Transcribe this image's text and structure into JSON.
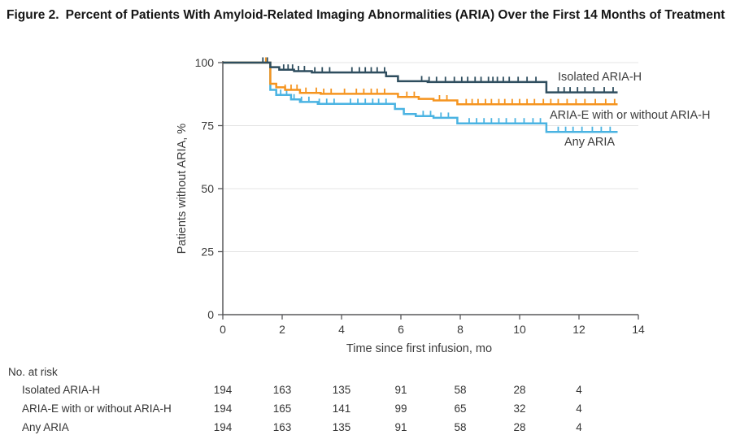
{
  "figure": {
    "label": "Figure 2.",
    "title": "Percent of Patients With Amyloid-Related Imaging Abnormalities (ARIA) Over the First 14 Months of Treatment"
  },
  "chart_data": {
    "type": "line",
    "subtype": "kaplan-meier-step",
    "title": "",
    "xlabel": "Time since first infusion, mo",
    "ylabel": "Patients without ARIA, %",
    "xlim": [
      0,
      14
    ],
    "ylim": [
      0,
      100
    ],
    "xticks": [
      0,
      2,
      4,
      6,
      8,
      10,
      12,
      14
    ],
    "yticks": [
      0,
      25,
      50,
      75,
      100
    ],
    "grid": "horizontal gridlines at 25, 50, 75, 100",
    "legend_position": "direct labels at right end of curves",
    "series": [
      {
        "name": "Isolated ARIA-H",
        "color": "#2e4d5e",
        "points": [
          [
            0,
            100
          ],
          [
            1.6,
            100
          ],
          [
            1.6,
            98.2
          ],
          [
            1.9,
            98.2
          ],
          [
            1.9,
            97.2
          ],
          [
            2.4,
            97.2
          ],
          [
            2.4,
            96.6
          ],
          [
            3.0,
            96.6
          ],
          [
            3.0,
            96.1
          ],
          [
            5.5,
            96.1
          ],
          [
            5.5,
            94.6
          ],
          [
            5.9,
            94.6
          ],
          [
            5.9,
            92.6
          ],
          [
            6.9,
            92.6
          ],
          [
            6.9,
            92.3
          ],
          [
            10.9,
            92.3
          ],
          [
            10.9,
            88.2
          ],
          [
            13.3,
            88.2
          ]
        ],
        "censor_times": [
          1.35,
          1.5,
          2.05,
          2.2,
          2.35,
          2.55,
          2.75,
          3.1,
          3.35,
          3.6,
          4.35,
          4.6,
          4.8,
          5.0,
          5.2,
          5.45,
          6.7,
          6.95,
          7.2,
          7.5,
          7.8,
          8.05,
          8.25,
          8.5,
          8.7,
          8.95,
          9.1,
          9.25,
          9.45,
          9.65,
          9.95,
          10.25,
          10.55,
          11.3,
          11.5,
          11.7,
          11.95,
          12.2,
          12.5,
          12.85,
          13.15
        ]
      },
      {
        "name": "ARIA-E with or without ARIA-H",
        "color": "#f5941f",
        "points": [
          [
            0,
            100
          ],
          [
            1.6,
            100
          ],
          [
            1.6,
            91.6
          ],
          [
            1.8,
            91.6
          ],
          [
            1.8,
            90.2
          ],
          [
            2.1,
            90.2
          ],
          [
            2.1,
            89.2
          ],
          [
            2.6,
            89.2
          ],
          [
            2.6,
            88.0
          ],
          [
            3.3,
            88.0
          ],
          [
            3.3,
            87.6
          ],
          [
            5.9,
            87.6
          ],
          [
            5.9,
            86.4
          ],
          [
            6.6,
            86.4
          ],
          [
            6.6,
            85.6
          ],
          [
            7.1,
            85.6
          ],
          [
            7.1,
            85.0
          ],
          [
            7.9,
            85.0
          ],
          [
            7.9,
            83.5
          ],
          [
            13.3,
            83.5
          ]
        ],
        "censor_times": [
          1.45,
          2.1,
          2.3,
          2.5,
          2.8,
          3.15,
          3.4,
          3.65,
          4.1,
          4.5,
          4.75,
          5.0,
          5.2,
          5.45,
          6.2,
          6.45,
          7.3,
          7.55,
          8.2,
          8.4,
          8.6,
          8.85,
          9.05,
          9.3,
          9.5,
          9.75,
          10.0,
          10.25,
          10.5,
          10.8,
          11.05,
          11.3,
          11.6,
          11.9,
          12.2,
          12.55,
          12.9,
          13.2
        ]
      },
      {
        "name": "Any ARIA",
        "color": "#4ab3e2",
        "points": [
          [
            0,
            100
          ],
          [
            1.6,
            100
          ],
          [
            1.6,
            89.2
          ],
          [
            1.8,
            89.2
          ],
          [
            1.8,
            87.2
          ],
          [
            2.3,
            87.2
          ],
          [
            2.3,
            85.4
          ],
          [
            2.6,
            85.4
          ],
          [
            2.6,
            84.4
          ],
          [
            3.2,
            84.4
          ],
          [
            3.2,
            83.6
          ],
          [
            5.8,
            83.6
          ],
          [
            5.8,
            81.6
          ],
          [
            6.1,
            81.6
          ],
          [
            6.1,
            79.6
          ],
          [
            6.5,
            79.6
          ],
          [
            6.5,
            78.8
          ],
          [
            7.1,
            78.8
          ],
          [
            7.1,
            78.1
          ],
          [
            7.9,
            78.1
          ],
          [
            7.9,
            75.9
          ],
          [
            10.9,
            75.9
          ],
          [
            10.9,
            72.5
          ],
          [
            13.3,
            72.5
          ]
        ],
        "censor_times": [
          1.95,
          2.15,
          2.4,
          2.65,
          2.9,
          3.25,
          3.5,
          3.75,
          4.3,
          4.55,
          4.8,
          5.05,
          5.25,
          5.5,
          6.75,
          7.0,
          7.35,
          7.6,
          8.3,
          8.55,
          8.8,
          9.05,
          9.3,
          9.55,
          9.85,
          10.15,
          10.45,
          10.7,
          11.3,
          11.55,
          11.8,
          12.1,
          12.45,
          12.75,
          13.05
        ]
      }
    ]
  },
  "risk_table": {
    "heading": "No. at risk",
    "times": [
      0,
      2,
      4,
      6,
      8,
      10,
      12
    ],
    "rows": [
      {
        "label": "Isolated ARIA-H",
        "counts": [
          194,
          163,
          135,
          91,
          58,
          28,
          4
        ]
      },
      {
        "label": "ARIA-E with or without ARIA-H",
        "counts": [
          194,
          165,
          141,
          99,
          65,
          32,
          4
        ]
      },
      {
        "label": "Any ARIA",
        "counts": [
          194,
          163,
          135,
          91,
          58,
          28,
          4
        ]
      }
    ]
  },
  "colors": {
    "isolated_aria_h": "#2e4d5e",
    "aria_e": "#f5941f",
    "any_aria": "#4ab3e2",
    "gridline": "#e4e4e4",
    "axis": "#58585a",
    "text": "#3a3a3a",
    "title_text": "#161616"
  }
}
